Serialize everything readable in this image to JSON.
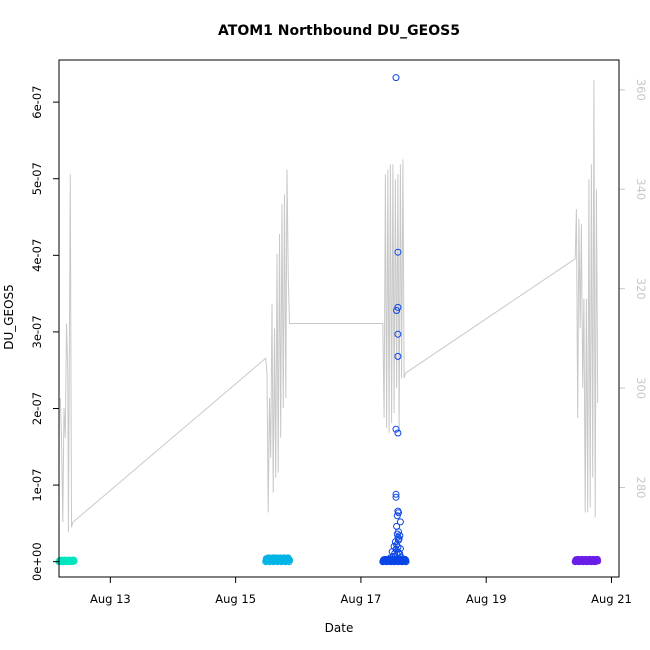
{
  "chart_data": {
    "type": "scatter",
    "title": "ATOM1 Northbound DU_GEOS5",
    "xlabel": "Date",
    "ylabel": "DU_GEOS5",
    "x_ticks": [
      "Aug 13",
      "Aug 15",
      "Aug 17",
      "Aug 19",
      "Aug 21"
    ],
    "x_tick_days": [
      13,
      15,
      17,
      19,
      21
    ],
    "xlim": [
      12.18,
      21.12
    ],
    "y_ticks": [
      "0e+00",
      "1e-07",
      "2e-07",
      "3e-07",
      "4e-07",
      "5e-07",
      "6e-07"
    ],
    "y_tick_values": [
      0,
      1e-07,
      2e-07,
      3e-07,
      4e-07,
      5e-07,
      6e-07
    ],
    "ylim": [
      -2e-08,
      6.55e-07
    ],
    "y2_ticks": [
      "280",
      "300",
      "320",
      "340",
      "360"
    ],
    "y2_tick_values": [
      280,
      300,
      320,
      340,
      360
    ],
    "y2lim": [
      262,
      366
    ],
    "line_color": "#c8c8c8",
    "line_series": [
      [
        12.2,
        298
      ],
      [
        12.22,
        290
      ],
      [
        12.24,
        273
      ],
      [
        12.26,
        296
      ],
      [
        12.28,
        290
      ],
      [
        12.3,
        313
      ],
      [
        12.32,
        303
      ],
      [
        12.33,
        271
      ],
      [
        12.36,
        343
      ],
      [
        12.38,
        272
      ],
      [
        12.4,
        273
      ],
      [
        15.48,
        306
      ],
      [
        15.5,
        303
      ],
      [
        15.52,
        275
      ],
      [
        15.54,
        298
      ],
      [
        15.56,
        286
      ],
      [
        15.58,
        317
      ],
      [
        15.6,
        279
      ],
      [
        15.62,
        312
      ],
      [
        15.64,
        282
      ],
      [
        15.66,
        327
      ],
      [
        15.68,
        283
      ],
      [
        15.7,
        331
      ],
      [
        15.72,
        290
      ],
      [
        15.74,
        337
      ],
      [
        15.76,
        296
      ],
      [
        15.78,
        339
      ],
      [
        15.8,
        298
      ],
      [
        15.82,
        344
      ],
      [
        15.84,
        322
      ],
      [
        15.86,
        313
      ],
      [
        17.35,
        313
      ],
      [
        17.37,
        294
      ],
      [
        17.39,
        343
      ],
      [
        17.41,
        292
      ],
      [
        17.43,
        344
      ],
      [
        17.45,
        291
      ],
      [
        17.47,
        345
      ],
      [
        17.49,
        293
      ],
      [
        17.51,
        345
      ],
      [
        17.53,
        295
      ],
      [
        17.55,
        342
      ],
      [
        17.57,
        300
      ],
      [
        17.59,
        343
      ],
      [
        17.61,
        291
      ],
      [
        17.63,
        345
      ],
      [
        17.65,
        302
      ],
      [
        17.67,
        346
      ],
      [
        17.69,
        302
      ],
      [
        17.71,
        303
      ],
      [
        20.42,
        326
      ],
      [
        20.44,
        336
      ],
      [
        20.46,
        294
      ],
      [
        20.48,
        334
      ],
      [
        20.5,
        312
      ],
      [
        20.52,
        333
      ],
      [
        20.54,
        300
      ],
      [
        20.56,
        318
      ],
      [
        20.58,
        275
      ],
      [
        20.6,
        318
      ],
      [
        20.62,
        275
      ],
      [
        20.64,
        342
      ],
      [
        20.66,
        276
      ],
      [
        20.68,
        345
      ],
      [
        20.7,
        282
      ],
      [
        20.72,
        362
      ],
      [
        20.74,
        274
      ],
      [
        20.76,
        340
      ],
      [
        20.78,
        297
      ]
    ],
    "point_groups": [
      {
        "color": "#00e5c0",
        "x_start": 12.18,
        "x_end": 12.42,
        "y_min": 0,
        "y_max": 2e-09,
        "points": []
      },
      {
        "color": "#00b4e6",
        "x_start": 15.48,
        "x_end": 15.86,
        "y_min": 0,
        "y_max": 5e-09,
        "points": [
          [
            15.62,
            5e-09
          ],
          [
            15.7,
            3e-09
          ],
          [
            15.55,
            2e-09
          ]
        ]
      },
      {
        "color": "#0a46e6",
        "x_start": 17.35,
        "x_end": 17.72,
        "y_min": 0,
        "y_max": 3e-09,
        "points": [
          [
            17.56,
            6.32e-07
          ],
          [
            17.59,
            4.04e-07
          ],
          [
            17.59,
            3.32e-07
          ],
          [
            17.57,
            3.28e-07
          ],
          [
            17.59,
            2.97e-07
          ],
          [
            17.59,
            2.68e-07
          ],
          [
            17.56,
            1.73e-07
          ],
          [
            17.59,
            1.68e-07
          ],
          [
            17.56,
            8.8e-08
          ],
          [
            17.56,
            8.4e-08
          ],
          [
            17.59,
            6.6e-08
          ],
          [
            17.6,
            6.4e-08
          ],
          [
            17.58,
            6e-08
          ],
          [
            17.63,
            5.2e-08
          ],
          [
            17.57,
            4.6e-08
          ],
          [
            17.6,
            3.9e-08
          ],
          [
            17.58,
            3.6e-08
          ],
          [
            17.62,
            3.4e-08
          ],
          [
            17.59,
            3.2e-08
          ],
          [
            17.61,
            3e-08
          ],
          [
            17.55,
            2.6e-08
          ],
          [
            17.6,
            2.8e-08
          ],
          [
            17.57,
            2.2e-08
          ],
          [
            17.53,
            2e-08
          ],
          [
            17.59,
            1.9e-08
          ],
          [
            17.63,
            1.7e-08
          ],
          [
            17.56,
            1.6e-08
          ],
          [
            17.5,
            1.3e-08
          ],
          [
            17.6,
            1.2e-08
          ],
          [
            17.54,
            1.1e-08
          ],
          [
            17.62,
            1e-08
          ],
          [
            17.58,
            9e-09
          ],
          [
            17.52,
            7e-09
          ],
          [
            17.64,
            6e-09
          ],
          [
            17.47,
            5e-09
          ]
        ]
      },
      {
        "color": "#6a1ee6",
        "x_start": 20.42,
        "x_end": 20.78,
        "y_min": 0,
        "y_max": 3e-09,
        "points": []
      }
    ]
  }
}
